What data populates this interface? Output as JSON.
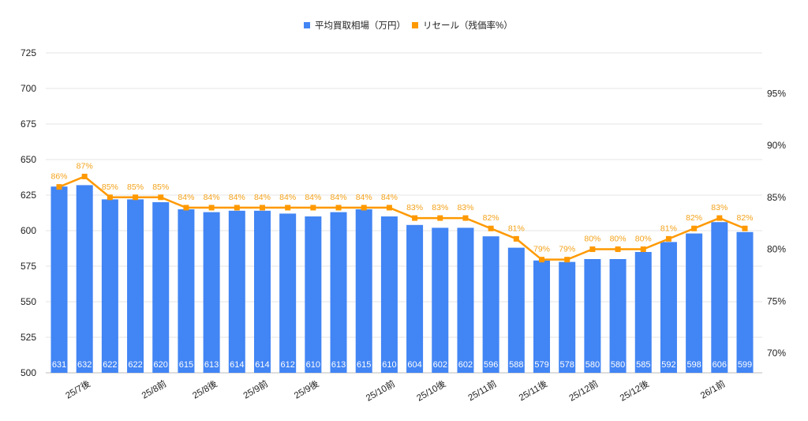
{
  "chart_data": {
    "type": "bar+line",
    "title": "",
    "categories": [
      "",
      "25/7後",
      "",
      "",
      "25/8前",
      "",
      "25/8後",
      "",
      "25/9前",
      "",
      "25/9後",
      "",
      "",
      "25/10前",
      "",
      "25/10後",
      "",
      "25/11前",
      "",
      "25/11後",
      "",
      "25/12前",
      "",
      "25/12後",
      "",
      "",
      "26/1前",
      ""
    ],
    "series": [
      {
        "name": "平均買取相場（万円）",
        "type": "bar",
        "axis": "left",
        "color": "#4285f4",
        "values": [
          631,
          632,
          622,
          622,
          620,
          615,
          613,
          614,
          614,
          612,
          610,
          613,
          615,
          610,
          604,
          602,
          602,
          596,
          588,
          579,
          578,
          580,
          580,
          585,
          592,
          598,
          606,
          599
        ]
      },
      {
        "name": "リセール（残価率%）",
        "type": "line",
        "axis": "right",
        "color": "#ff9900",
        "values": [
          86,
          87,
          85,
          85,
          85,
          84,
          84,
          84,
          84,
          84,
          84,
          84,
          84,
          84,
          83,
          83,
          83,
          82,
          81,
          79,
          79,
          80,
          80,
          80,
          81,
          82,
          83,
          82
        ]
      }
    ],
    "y_left": {
      "ylim": [
        500,
        725
      ],
      "ticks": [
        500,
        525,
        550,
        575,
        600,
        625,
        650,
        675,
        700,
        725
      ]
    },
    "y_right": {
      "ylim": [
        68.1,
        98.9
      ],
      "ticks": [
        70,
        75,
        80,
        85,
        90,
        95
      ],
      "suffix": "%"
    },
    "grid": true,
    "legend": "top"
  }
}
